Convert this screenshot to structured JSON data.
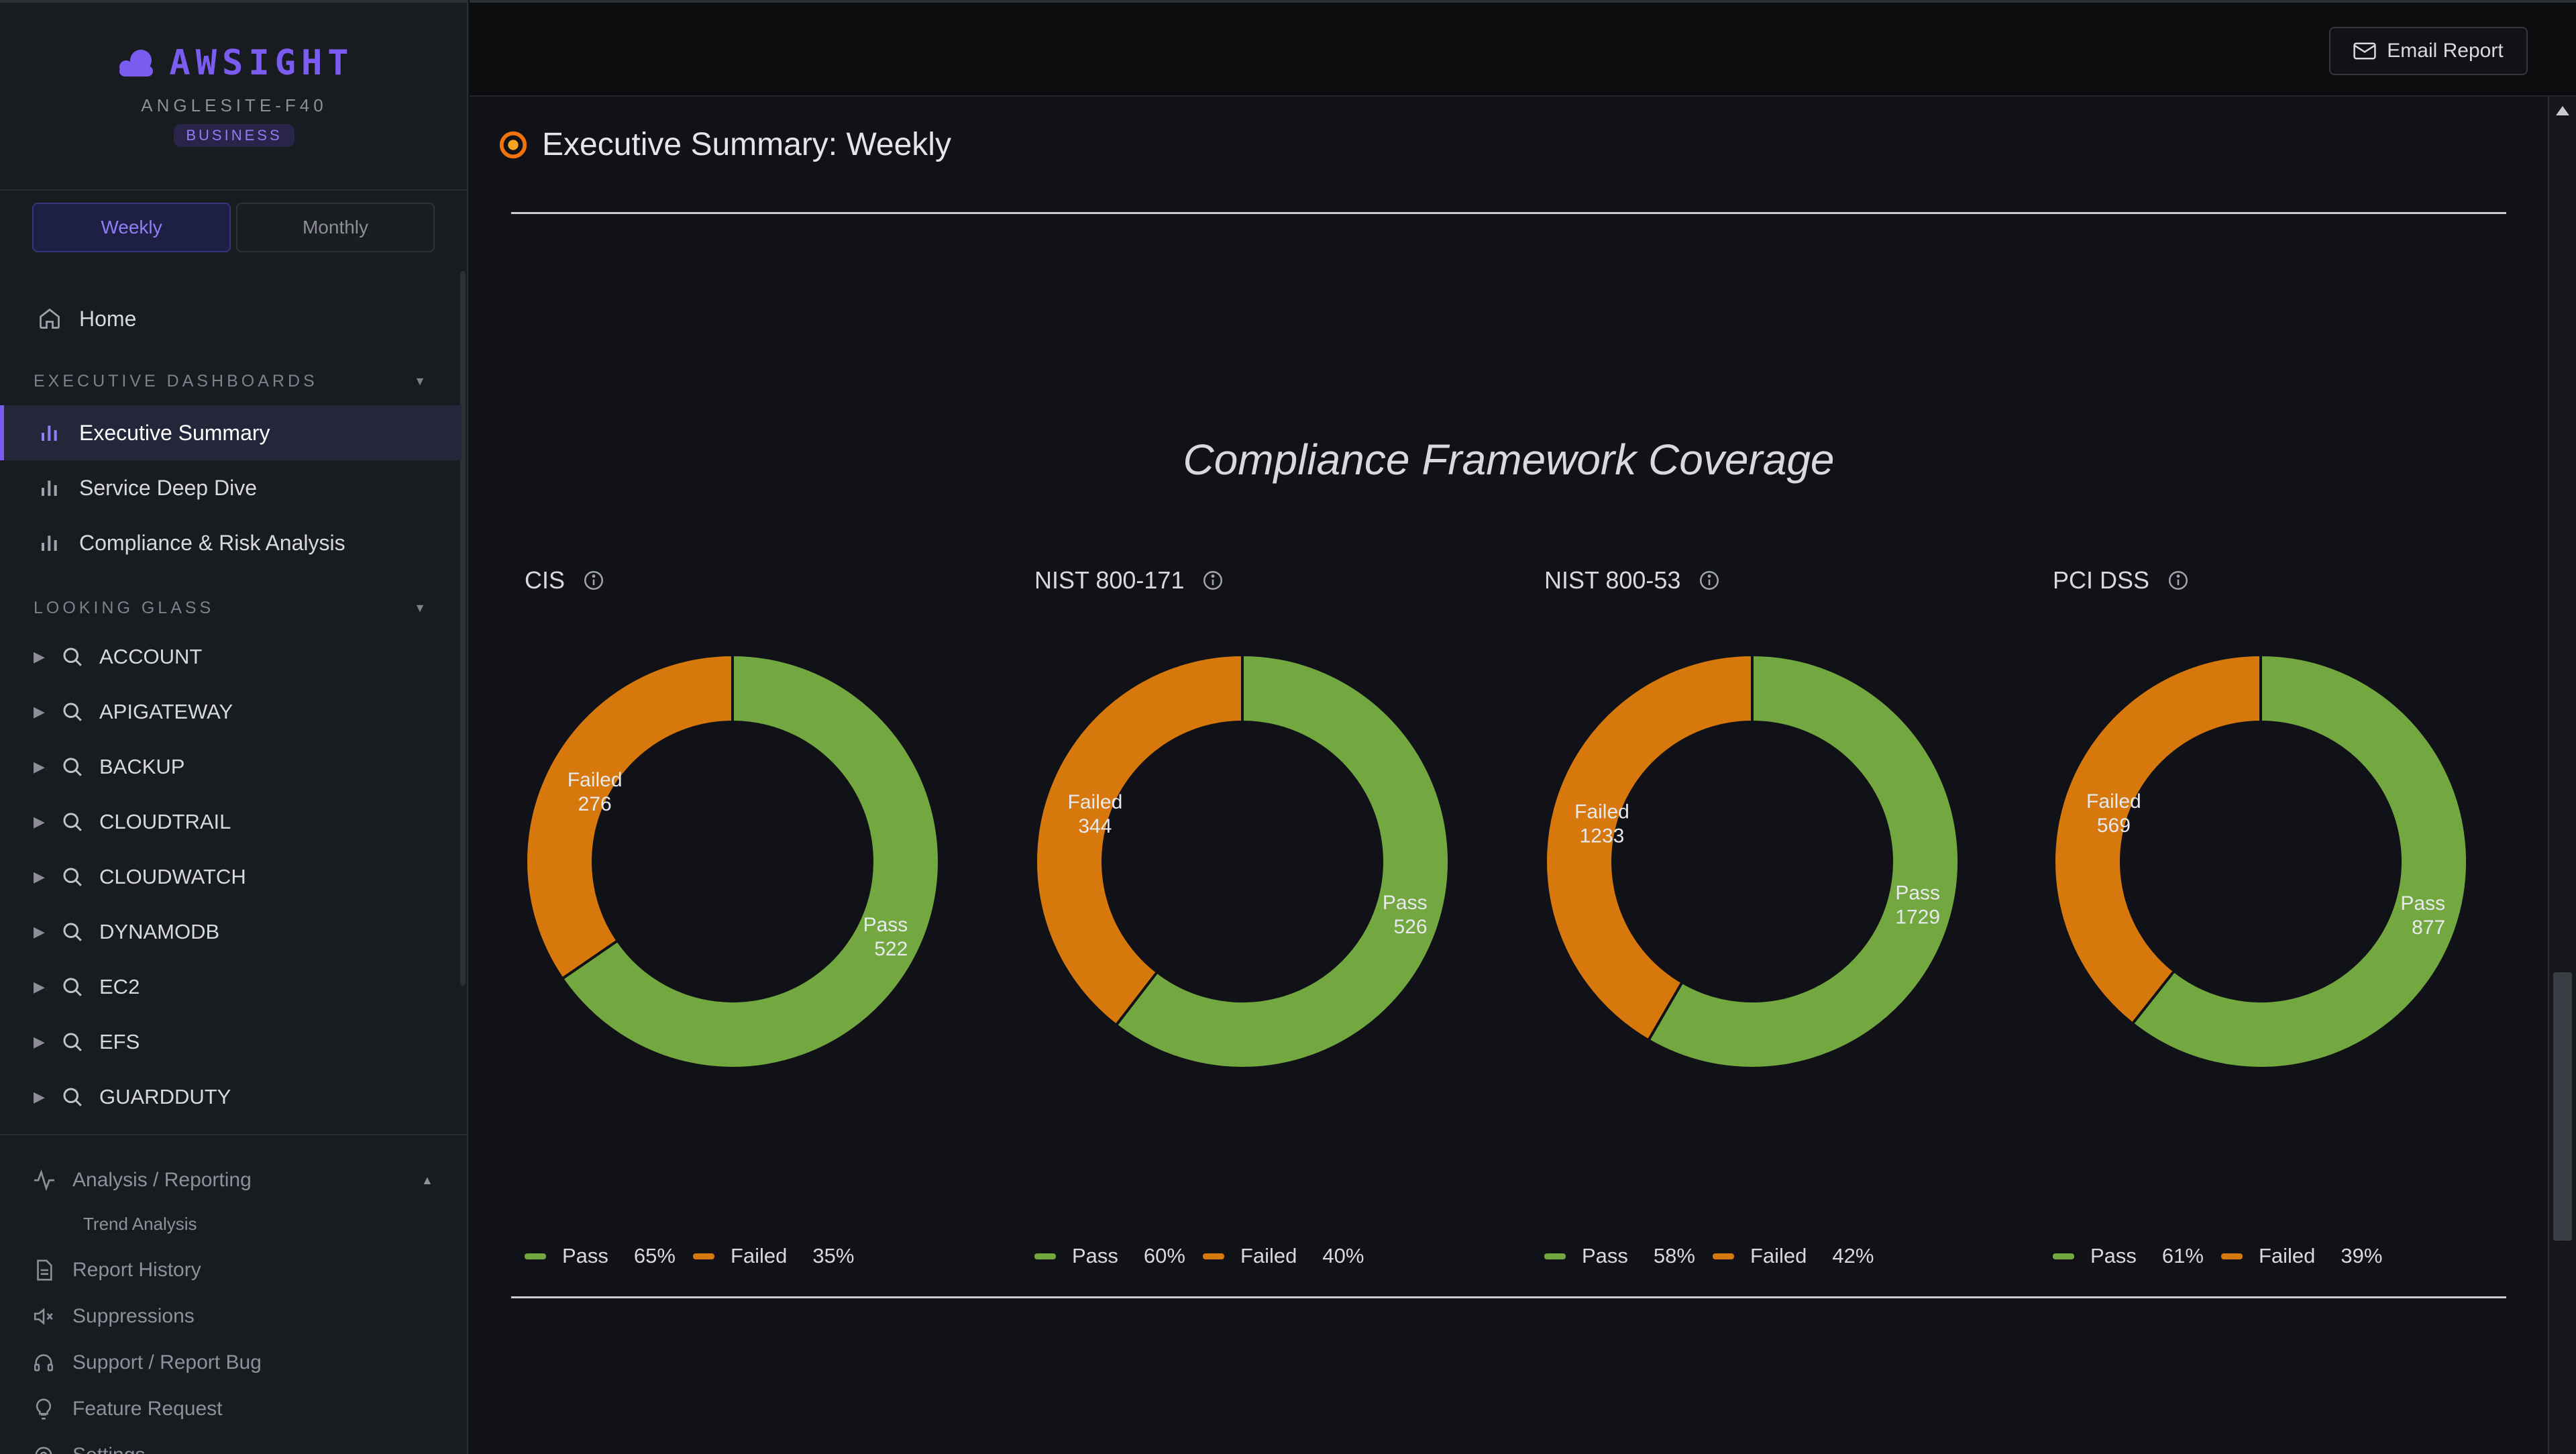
{
  "brand": {
    "name": "AWSIGHT",
    "tenant": "ANGLESITE-F40",
    "tier": "BUSINESS"
  },
  "period_toggle": {
    "weekly": "Weekly",
    "monthly": "Monthly",
    "selected": "Weekly"
  },
  "nav": {
    "home": "Home",
    "exec_section": "EXECUTIVE DASHBOARDS",
    "exec_items": [
      "Executive Summary",
      "Service Deep Dive",
      "Compliance & Risk Analysis"
    ],
    "active_item": "Executive Summary",
    "glass_section": "LOOKING GLASS",
    "glass_items": [
      "ACCOUNT",
      "APIGATEWAY",
      "BACKUP",
      "CLOUDTRAIL",
      "CLOUDWATCH",
      "DYNAMODB",
      "EC2",
      "EFS",
      "GUARDDUTY"
    ],
    "analysis": "Analysis / Reporting",
    "trend": "Trend Analysis",
    "report_history": "Report History",
    "suppressions": "Suppressions",
    "support": "Support / Report Bug",
    "feature": "Feature Request",
    "settings": "Settings"
  },
  "topbar": {
    "email_report": "Email Report"
  },
  "page": {
    "title": "Executive Summary: Weekly",
    "section_title": "Compliance Framework Coverage"
  },
  "colors": {
    "pass": "#73a840",
    "failed": "#d6780c",
    "accent": "#7a5cf0"
  },
  "chart_data": [
    {
      "type": "pie",
      "title": "CIS",
      "labels": [
        "Pass",
        "Failed"
      ],
      "values": [
        522,
        276
      ],
      "percentages": [
        "65%",
        "35%"
      ]
    },
    {
      "type": "pie",
      "title": "NIST 800-171",
      "labels": [
        "Pass",
        "Failed"
      ],
      "values": [
        526,
        344
      ],
      "percentages": [
        "60%",
        "40%"
      ]
    },
    {
      "type": "pie",
      "title": "NIST 800-53",
      "labels": [
        "Pass",
        "Failed"
      ],
      "values": [
        1729,
        1233
      ],
      "percentages": [
        "58%",
        "42%"
      ]
    },
    {
      "type": "pie",
      "title": "PCI DSS",
      "labels": [
        "Pass",
        "Failed"
      ],
      "values": [
        877,
        569
      ],
      "percentages": [
        "61%",
        "39%"
      ]
    }
  ]
}
